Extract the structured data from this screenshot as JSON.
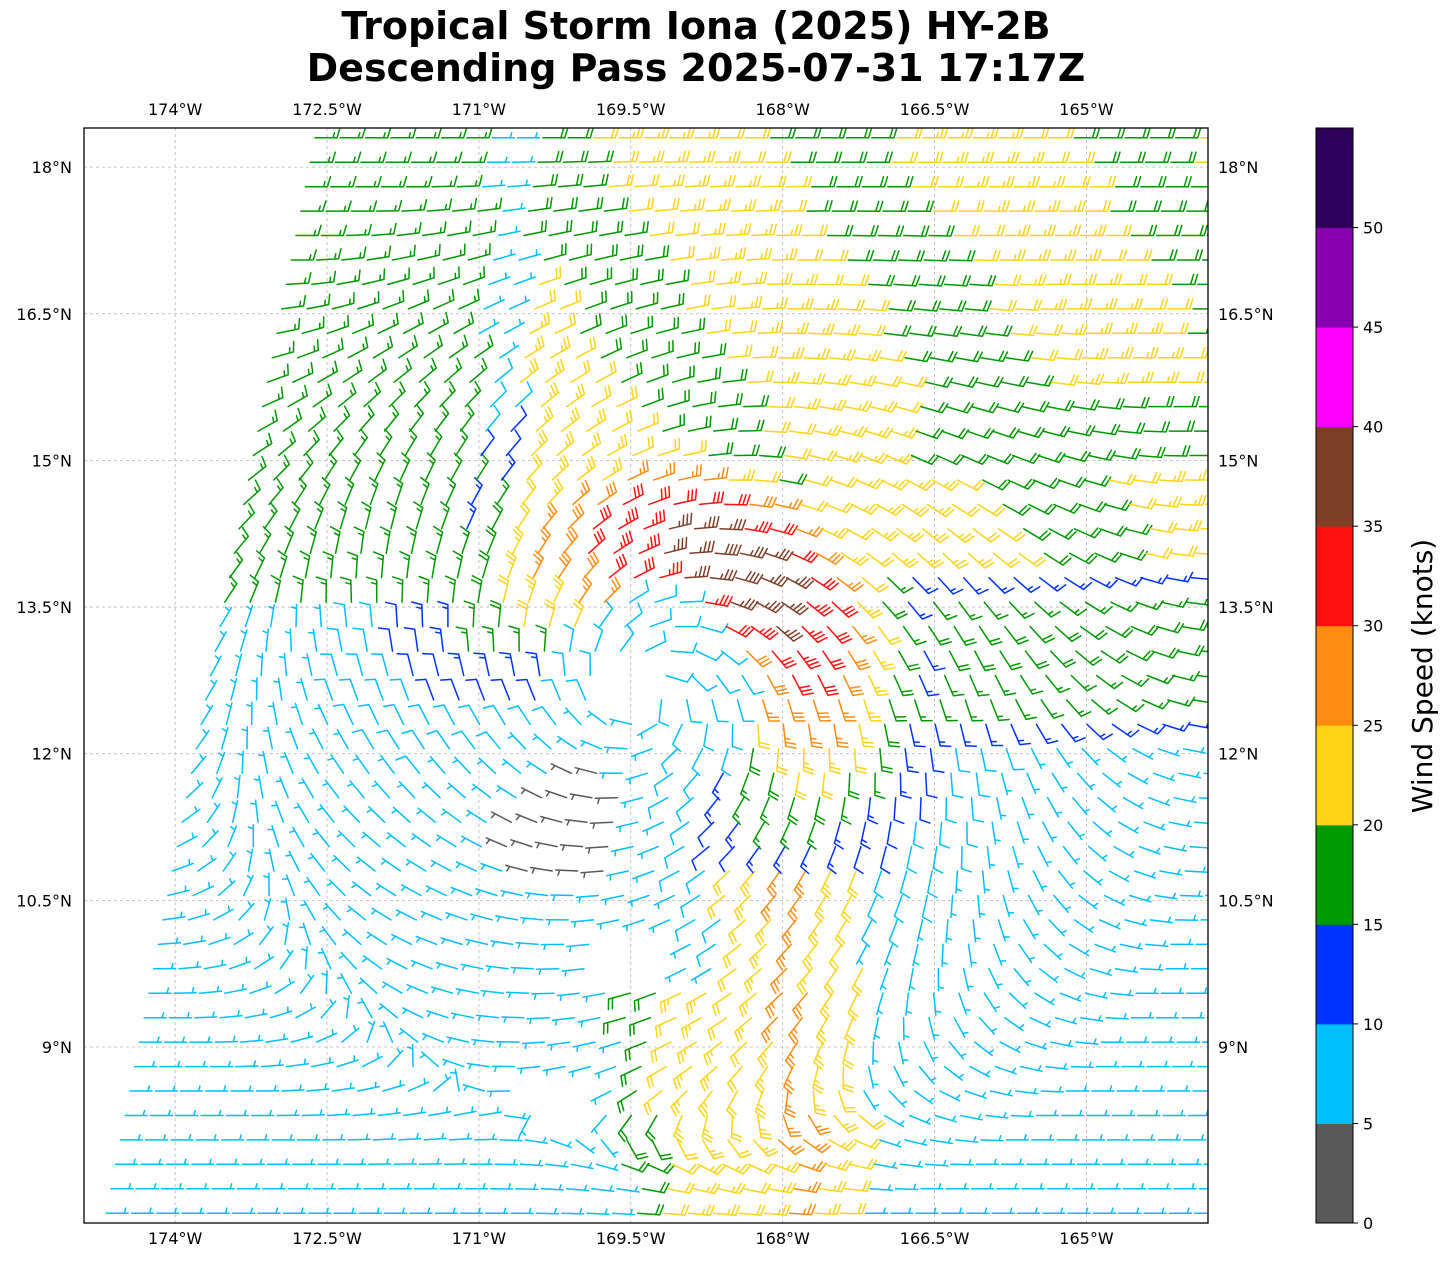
{
  "title": {
    "line1": "Tropical Storm Iona (2025) HY-2B",
    "line2": "Descending Pass 2025-07-31 17:17Z"
  },
  "map": {
    "lon_range": [
      -174.9,
      -163.8
    ],
    "lat_range": [
      7.2,
      18.4
    ],
    "gridlines": "dashed",
    "lon_ticks": [
      {
        "value": -174.0,
        "label": "174°W"
      },
      {
        "value": -172.5,
        "label": "172.5°W"
      },
      {
        "value": -171.0,
        "label": "171°W"
      },
      {
        "value": -169.5,
        "label": "169.5°W"
      },
      {
        "value": -168.0,
        "label": "168°W"
      },
      {
        "value": -166.5,
        "label": "166.5°W"
      },
      {
        "value": -165.0,
        "label": "165°W"
      }
    ],
    "lat_ticks": [
      {
        "value": 18.0,
        "label": "18°N"
      },
      {
        "value": 16.5,
        "label": "16.5°N"
      },
      {
        "value": 15.0,
        "label": "15°N"
      },
      {
        "value": 13.5,
        "label": "13.5°N"
      },
      {
        "value": 12.0,
        "label": "12°N"
      },
      {
        "value": 10.5,
        "label": "10.5°N"
      },
      {
        "value": 9.0,
        "label": "9°N"
      }
    ],
    "storm_center": {
      "lon": -169.3,
      "lat": 12.6
    },
    "swath_west_edge": {
      "north_lon": -172.6,
      "north_lat": 18.4,
      "south_lon": -174.7,
      "south_lat": 7.2
    },
    "barb_spacing_deg": 0.25,
    "data_gaps": [
      {
        "lon": -169.5,
        "lat": 12.7,
        "radius": 0.25
      },
      {
        "lon": -169.45,
        "lat": 9.9,
        "radius": 0.35
      },
      {
        "lon": -170.2,
        "lat": 8.4,
        "radius": 0.3
      }
    ]
  },
  "colorbar": {
    "label": "Wind Speed (knots)",
    "bins": [
      {
        "min": 0,
        "max": 5,
        "color": "#595959"
      },
      {
        "min": 5,
        "max": 10,
        "color": "#00bfff"
      },
      {
        "min": 10,
        "max": 15,
        "color": "#0033ff"
      },
      {
        "min": 15,
        "max": 20,
        "color": "#009900"
      },
      {
        "min": 20,
        "max": 25,
        "color": "#ffd414"
      },
      {
        "min": 25,
        "max": 30,
        "color": "#ff8c10"
      },
      {
        "min": 30,
        "max": 35,
        "color": "#ff1010"
      },
      {
        "min": 35,
        "max": 40,
        "color": "#7f3f27"
      },
      {
        "min": 40,
        "max": 45,
        "color": "#ff00ff"
      },
      {
        "min": 45,
        "max": 50,
        "color": "#8800b0"
      },
      {
        "min": 50,
        "max": 55,
        "color": "#2e005b"
      }
    ],
    "ticks": [
      "0",
      "5",
      "10",
      "15",
      "20",
      "25",
      "30",
      "35",
      "40",
      "45",
      "50"
    ]
  }
}
